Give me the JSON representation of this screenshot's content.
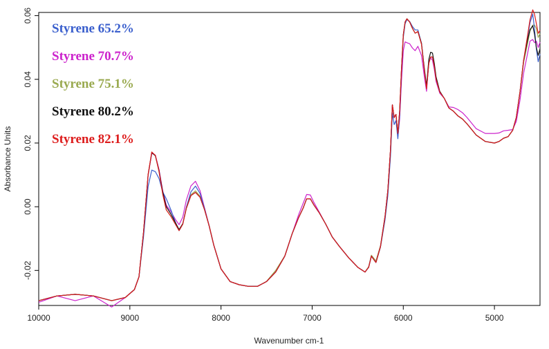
{
  "chart_data": {
    "type": "line",
    "title": "",
    "xlabel": "Wavenumber cm-1",
    "ylabel": "Absorbance Units",
    "xlim": [
      10000,
      4500
    ],
    "ylim": [
      -0.031,
      0.061
    ],
    "x_reversed": true,
    "grid": false,
    "legend_position": "top-left",
    "x_ticks": [
      {
        "value": 10000,
        "label": "10000"
      },
      {
        "value": 9000,
        "label": "9000"
      },
      {
        "value": 8000,
        "label": "8000"
      },
      {
        "value": 7000,
        "label": "7000"
      },
      {
        "value": 6000,
        "label": "6000"
      },
      {
        "value": 5000,
        "label": "5000"
      }
    ],
    "y_ticks": [
      {
        "value": -0.02,
        "label": "-0.02"
      },
      {
        "value": 0.0,
        "label": "0.00"
      },
      {
        "value": 0.02,
        "label": "0.02"
      },
      {
        "value": 0.04,
        "label": "0.04"
      },
      {
        "value": 0.06,
        "label": "0.06"
      }
    ],
    "base_curve": {
      "x": [
        10000,
        9800,
        9600,
        9400,
        9200,
        9050,
        8950,
        8900,
        8850,
        8800,
        8760,
        8720,
        8680,
        8640,
        8600,
        8550,
        8500,
        8460,
        8420,
        8380,
        8330,
        8280,
        8230,
        8180,
        8130,
        8080,
        8000,
        7900,
        7800,
        7700,
        7600,
        7500,
        7400,
        7300,
        7220,
        7150,
        7100,
        7060,
        7020,
        6980,
        6920,
        6850,
        6780,
        6700,
        6600,
        6500,
        6420,
        6380,
        6350,
        6300,
        6250,
        6200,
        6170,
        6140,
        6120,
        6100,
        6080,
        6060,
        6040,
        6020,
        6000,
        5980,
        5960,
        5930,
        5900,
        5870,
        5840,
        5800,
        5770,
        5745,
        5720,
        5700,
        5680,
        5660,
        5640,
        5600,
        5550,
        5500,
        5450,
        5400,
        5350,
        5300,
        5200,
        5100,
        5000,
        4950,
        4900,
        4850,
        4800,
        4760,
        4720,
        4680,
        4640,
        4610,
        4580,
        4560,
        4540,
        4520,
        4500
      ],
      "y": [
        -0.0295,
        -0.028,
        -0.0275,
        -0.028,
        -0.0295,
        -0.0285,
        -0.026,
        -0.022,
        -0.008,
        0.01,
        0.017,
        0.016,
        0.011,
        0.004,
        -0.001,
        -0.003,
        -0.0055,
        -0.0075,
        -0.0055,
        -0.0005,
        0.0035,
        0.0045,
        0.003,
        -0.001,
        -0.006,
        -0.012,
        -0.0195,
        -0.0235,
        -0.0245,
        -0.025,
        -0.025,
        -0.0235,
        -0.0205,
        -0.0155,
        -0.0085,
        -0.0035,
        -0.0005,
        0.0025,
        0.0025,
        0.0005,
        -0.002,
        -0.0055,
        -0.0095,
        -0.0125,
        -0.016,
        -0.019,
        -0.0205,
        -0.019,
        -0.0155,
        -0.0175,
        -0.0125,
        -0.003,
        0.005,
        0.018,
        0.032,
        0.028,
        0.029,
        0.023,
        0.03,
        0.043,
        0.054,
        0.058,
        0.059,
        0.058,
        0.056,
        0.0545,
        0.055,
        0.051,
        0.043,
        0.037,
        0.045,
        0.047,
        0.047,
        0.044,
        0.04,
        0.036,
        0.034,
        0.031,
        0.03,
        0.0285,
        0.0275,
        0.026,
        0.0225,
        0.0205,
        0.02,
        0.0205,
        0.0215,
        0.022,
        0.024,
        0.028,
        0.036,
        0.046,
        0.053,
        0.0585,
        0.0615,
        0.06,
        0.057,
        0.054,
        0.055
      ]
    },
    "series": [
      {
        "name": "Styrene 65.2%",
        "color": "#3a5fcd",
        "adjustments": [
          {
            "x": 8760,
            "dy": -0.0055
          },
          {
            "x": 8720,
            "dy": -0.005
          },
          {
            "x": 8600,
            "dy": 0.0035
          },
          {
            "x": 8280,
            "dy": 0.002
          },
          {
            "x": 6140,
            "dy": -0.002
          },
          {
            "x": 6120,
            "dy": -0.0025
          },
          {
            "x": 5870,
            "dy": 0.001
          },
          {
            "x": 5840,
            "dy": 0.0005
          },
          {
            "x": 4580,
            "dy": -0.001
          },
          {
            "x": 4540,
            "dy": -0.0075
          },
          {
            "x": 4520,
            "dy": -0.0085
          }
        ]
      },
      {
        "name": "Styrene 70.7%",
        "color": "#cc22cc",
        "adjustments": [
          {
            "x": 10000,
            "dy": -0.0005
          },
          {
            "x": 9600,
            "dy": -0.002
          },
          {
            "x": 9200,
            "dy": -0.002
          },
          {
            "x": 8760,
            "dy": -0.0002
          },
          {
            "x": 8600,
            "dy": 0.0015
          },
          {
            "x": 8500,
            "dy": 0.0015
          },
          {
            "x": 8280,
            "dy": 0.0035
          },
          {
            "x": 7100,
            "dy": 0.0015
          },
          {
            "x": 7020,
            "dy": 0.0012
          },
          {
            "x": 5960,
            "dy": -0.0075
          },
          {
            "x": 5870,
            "dy": -0.0055
          },
          {
            "x": 5800,
            "dy": -0.0035
          },
          {
            "x": 5720,
            "dy": 0.0005
          },
          {
            "x": 5680,
            "dy": -0.001
          },
          {
            "x": 5400,
            "dy": 0.002
          },
          {
            "x": 5200,
            "dy": 0.002
          },
          {
            "x": 5000,
            "dy": 0.003
          },
          {
            "x": 4850,
            "dy": 0.002
          },
          {
            "x": 4610,
            "dy": -0.0065
          },
          {
            "x": 4580,
            "dy": -0.009
          },
          {
            "x": 4560,
            "dy": -0.0085
          },
          {
            "x": 4540,
            "dy": -0.005
          },
          {
            "x": 4520,
            "dy": -0.004
          }
        ]
      },
      {
        "name": "Styrene 75.1%",
        "color": "#9aaa50",
        "adjustments": [
          {
            "x": 8280,
            "dy": 0.0005
          },
          {
            "x": 7400,
            "dy": 0.0005
          },
          {
            "x": 6300,
            "dy": 0.0005
          },
          {
            "x": 4580,
            "dy": -0.0045
          },
          {
            "x": 4560,
            "dy": -0.003
          },
          {
            "x": 4540,
            "dy": -0.001
          }
        ]
      },
      {
        "name": "Styrene 80.2%",
        "color": "#111111",
        "adjustments": [
          {
            "x": 8600,
            "dy": 0.001
          },
          {
            "x": 8500,
            "dy": 0.0005
          },
          {
            "x": 5700,
            "dy": 0.0015
          },
          {
            "x": 4540,
            "dy": -0.007
          },
          {
            "x": 4520,
            "dy": -0.0065
          }
        ]
      },
      {
        "name": "Styrene 82.1%",
        "color": "#dd1c1c",
        "adjustments": [
          {
            "x": 8760,
            "dy": 0.0002
          },
          {
            "x": 4540,
            "dy": 0.0005
          }
        ]
      }
    ]
  }
}
